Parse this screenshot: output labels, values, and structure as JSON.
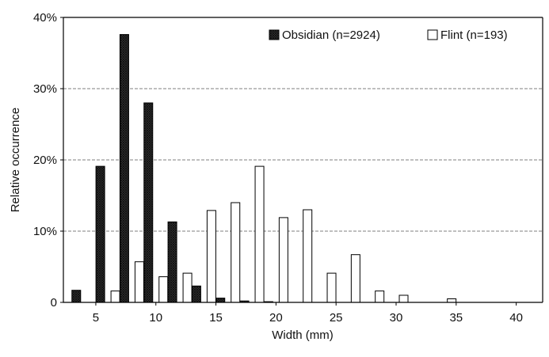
{
  "chart_data": {
    "type": "bar",
    "xlabel": "Width (mm)",
    "ylabel": "Relative occurrence",
    "ylim": [
      0,
      40
    ],
    "y_ticks": [
      {
        "value": 0,
        "label": "0"
      },
      {
        "value": 10,
        "label": "10%"
      },
      {
        "value": 20,
        "label": "20%"
      },
      {
        "value": 30,
        "label": "30%"
      },
      {
        "value": 40,
        "label": "40%"
      }
    ],
    "x_ticks": [
      "5",
      "10",
      "15",
      "20",
      "25",
      "30",
      "35",
      "40"
    ],
    "grid": "horizontal dashed",
    "legend_placement": "top-right",
    "categories": [
      4,
      6,
      8,
      10,
      12,
      14,
      16,
      18,
      20,
      22,
      24,
      26,
      28,
      30,
      32,
      34,
      36,
      38,
      40
    ],
    "series": [
      {
        "name": "Obsidian (n=2924)",
        "style": "dark crosshatch",
        "color": "#2b2b2b",
        "values": [
          1.7,
          19.1,
          37.6,
          28.0,
          11.3,
          2.3,
          0.6,
          0.2,
          0.1,
          0,
          0,
          0,
          0,
          0,
          0,
          0,
          0,
          0,
          0
        ]
      },
      {
        "name": "Flint (n=193)",
        "style": "white",
        "color": "#ffffff",
        "values": [
          0,
          1.6,
          5.7,
          3.6,
          4.1,
          12.9,
          14.0,
          19.1,
          11.9,
          13.0,
          4.1,
          6.7,
          1.6,
          1.0,
          0,
          0.5,
          0,
          0,
          0
        ]
      }
    ]
  }
}
